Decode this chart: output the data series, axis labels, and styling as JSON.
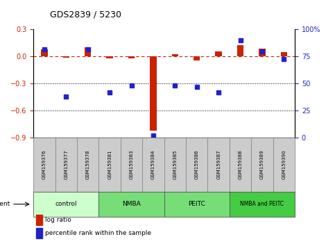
{
  "title": "GDS2839 / 5230",
  "samples": [
    "GSM159376",
    "GSM159377",
    "GSM159378",
    "GSM159381",
    "GSM159383",
    "GSM159384",
    "GSM159385",
    "GSM159386",
    "GSM159387",
    "GSM159388",
    "GSM159389",
    "GSM159390"
  ],
  "log_ratio": [
    0.08,
    -0.01,
    0.1,
    -0.02,
    -0.02,
    -0.82,
    0.03,
    -0.04,
    0.06,
    0.13,
    0.09,
    0.05
  ],
  "percentile_rank": [
    82,
    38,
    82,
    42,
    48,
    2,
    48,
    47,
    42,
    90,
    80,
    73
  ],
  "groups": [
    {
      "label": "control",
      "start": 0,
      "end": 3,
      "color": "#ccffcc"
    },
    {
      "label": "NMBA",
      "start": 3,
      "end": 6,
      "color": "#77dd77"
    },
    {
      "label": "PEITC",
      "start": 6,
      "end": 9,
      "color": "#77dd77"
    },
    {
      "label": "NMBA and PEITC",
      "start": 9,
      "end": 12,
      "color": "#44cc44"
    }
  ],
  "ylim_left": [
    -0.9,
    0.3
  ],
  "ylim_right": [
    0,
    100
  ],
  "yticks_left": [
    -0.9,
    -0.6,
    -0.3,
    0.0,
    0.3
  ],
  "yticks_right": [
    0,
    25,
    50,
    75,
    100
  ],
  "log_ratio_color": "#cc2200",
  "percentile_color": "#2222cc",
  "ref_line_color": "#cc2200",
  "dotted_line_color": "#000000",
  "bar_width": 0.3,
  "legend_log_ratio": "log ratio",
  "legend_percentile": "percentile rank within the sample",
  "fig_width": 4.83,
  "fig_height": 3.54
}
